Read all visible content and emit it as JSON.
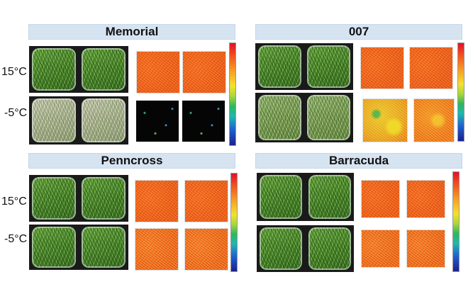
{
  "panels": [
    {
      "title": "Memorial",
      "rows": [
        {
          "label": "15°C"
        },
        {
          "label": "-5°C"
        }
      ]
    },
    {
      "title": "007",
      "rows": [
        {
          "label": ""
        },
        {
          "label": ""
        }
      ]
    },
    {
      "title": "Penncross",
      "rows": [
        {
          "label": "15°C"
        },
        {
          "label": "-5°C"
        }
      ]
    },
    {
      "title": "Barracuda",
      "rows": [
        {
          "label": ""
        },
        {
          "label": ""
        }
      ]
    }
  ],
  "colors": {
    "header_bg": "#d6e4f2",
    "heat_red": "#ea5a1c"
  }
}
